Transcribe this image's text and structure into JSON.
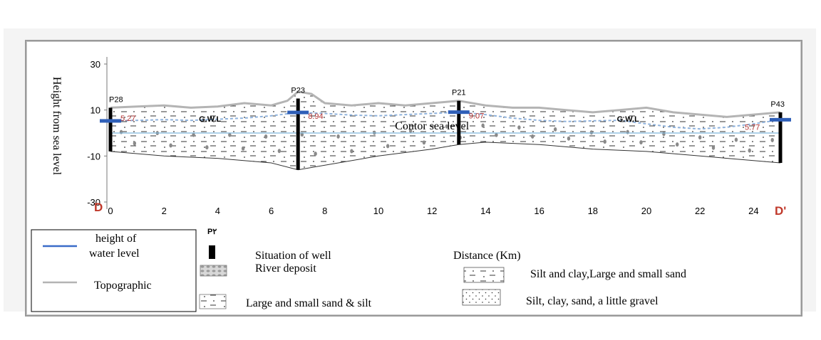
{
  "chart_data": {
    "type": "cross-section",
    "ylabel": "Height from sea level",
    "xlabel": "Distance (Km)",
    "x_ticks": [
      0,
      2,
      4,
      6,
      8,
      10,
      12,
      14,
      16,
      18,
      20,
      22,
      24
    ],
    "y_ticks": [
      30,
      10,
      -10,
      -30
    ],
    "xlim": [
      0,
      25
    ],
    "ylim": [
      -30,
      30
    ],
    "section_start": "D",
    "section_end": "D'",
    "topographic": [
      [
        0,
        11
      ],
      [
        1,
        11.5
      ],
      [
        2,
        12
      ],
      [
        3,
        11
      ],
      [
        4,
        11.5
      ],
      [
        5,
        13
      ],
      [
        6,
        12
      ],
      [
        6.6,
        14
      ],
      [
        7,
        18
      ],
      [
        7.5,
        17
      ],
      [
        8,
        13
      ],
      [
        9,
        12
      ],
      [
        10,
        13
      ],
      [
        11,
        12
      ],
      [
        12,
        13
      ],
      [
        13,
        14
      ],
      [
        14,
        12
      ],
      [
        15,
        11
      ],
      [
        16,
        11
      ],
      [
        17,
        10
      ],
      [
        18,
        9
      ],
      [
        19,
        10
      ],
      [
        20,
        11
      ],
      [
        21,
        9
      ],
      [
        22,
        8
      ],
      [
        23,
        7
      ],
      [
        24,
        8
      ],
      [
        25,
        9
      ]
    ],
    "bottom": [
      [
        0,
        -8
      ],
      [
        2,
        -10
      ],
      [
        4,
        -11
      ],
      [
        6,
        -13
      ],
      [
        7,
        -16
      ],
      [
        8,
        -14
      ],
      [
        10,
        -10
      ],
      [
        12,
        -7
      ],
      [
        13,
        -5
      ],
      [
        14,
        -4
      ],
      [
        16,
        -5
      ],
      [
        18,
        -7
      ],
      [
        20,
        -8
      ],
      [
        22,
        -10
      ],
      [
        24,
        -12
      ],
      [
        25,
        -13
      ]
    ],
    "water_level": [
      [
        0,
        5.27
      ],
      [
        1,
        5.5
      ],
      [
        2,
        5.8
      ],
      [
        3,
        5.5
      ],
      [
        4,
        6
      ],
      [
        5,
        6.5
      ],
      [
        6,
        7.5
      ],
      [
        7,
        8.94
      ],
      [
        8,
        8.5
      ],
      [
        9,
        7.8
      ],
      [
        10,
        7.5
      ],
      [
        11,
        8
      ],
      [
        12,
        8.5
      ],
      [
        13,
        9.07
      ],
      [
        14,
        8
      ],
      [
        15,
        6.5
      ],
      [
        16,
        5.5
      ],
      [
        17,
        5
      ],
      [
        18,
        5.3
      ],
      [
        19,
        5.5
      ],
      [
        20,
        4
      ],
      [
        21,
        2.5
      ],
      [
        22,
        1.8
      ],
      [
        23,
        2.5
      ],
      [
        24,
        4
      ],
      [
        25,
        5.77
      ]
    ],
    "sea_level": 0,
    "wells": [
      {
        "name": "P28",
        "x": 0,
        "top": 11,
        "bottom": -8,
        "water": 5.27,
        "water_label": "5.27"
      },
      {
        "name": "P23",
        "x": 7,
        "top": 15,
        "bottom": -16,
        "water": 8.94,
        "water_label": "8.94"
      },
      {
        "name": "P21",
        "x": 13,
        "top": 14,
        "bottom": -5,
        "water": 9.07,
        "water_label": "9.07"
      },
      {
        "name": "P43",
        "x": 25,
        "top": 9,
        "bottom": -13,
        "water": 5.77,
        "water_label": "5.77"
      }
    ],
    "annotations": [
      {
        "text": "G.W.L",
        "x": 3.3,
        "y": 5
      },
      {
        "text": "G.W.L",
        "x": 18.9,
        "y": 5
      },
      {
        "text": "Contor sea level",
        "x": 12,
        "y": 1.5
      }
    ],
    "colors": {
      "topographic": "#b4b4b4",
      "water_level": "#8fb2dc",
      "sea_level": "#7fb8dc",
      "well": "#000000",
      "well_cap": "#2f5fb8",
      "value_label": "#b03030",
      "endpoint_label": "#c0392b"
    }
  },
  "legend": {
    "water_level_label": "height of\nwater level",
    "topographic_label": "Topographic",
    "well_symbol_label": "P٢",
    "well_label": "Situation of well",
    "river_label": "River deposit",
    "sand_silt_label": "Large and small  sand & silt",
    "silt_clay_sand_label": "Silt and clay,Large and small  sand",
    "gravel_label": "Silt, clay,  sand, a little gravel"
  }
}
